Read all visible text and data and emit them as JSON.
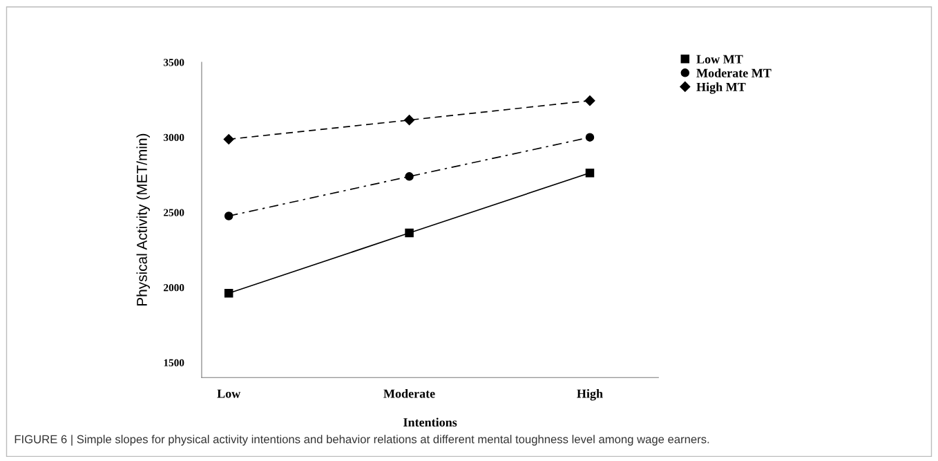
{
  "chart_data": {
    "type": "line",
    "xlabel": "Intentions",
    "ylabel": "Physical Activity (MET/min)",
    "categories": [
      "Low",
      "Moderate",
      "High"
    ],
    "series": [
      {
        "name": "Low MT",
        "color": "#000000",
        "values": [
          1962,
          2363,
          2763
        ],
        "marker": "square",
        "line_style": "solid"
      },
      {
        "name": "Moderate MT",
        "color": "#000000",
        "values": [
          2476,
          2739,
          3000
        ],
        "marker": "circle",
        "line_style": "dashdot"
      },
      {
        "name": "High MT",
        "color": "#000000",
        "values": [
          2987,
          3115,
          3244
        ],
        "marker": "diamond",
        "line_style": "dashed"
      }
    ],
    "ylim": [
      1400,
      3500
    ],
    "yticks": [
      1500,
      2000,
      2500,
      3000,
      3500
    ],
    "grid": false,
    "legend": "top right",
    "annotations": [
      "FIGURE 6 | Simple slopes for physical activity intentions and behavior relations at different mental toughness level among wage earners."
    ]
  }
}
